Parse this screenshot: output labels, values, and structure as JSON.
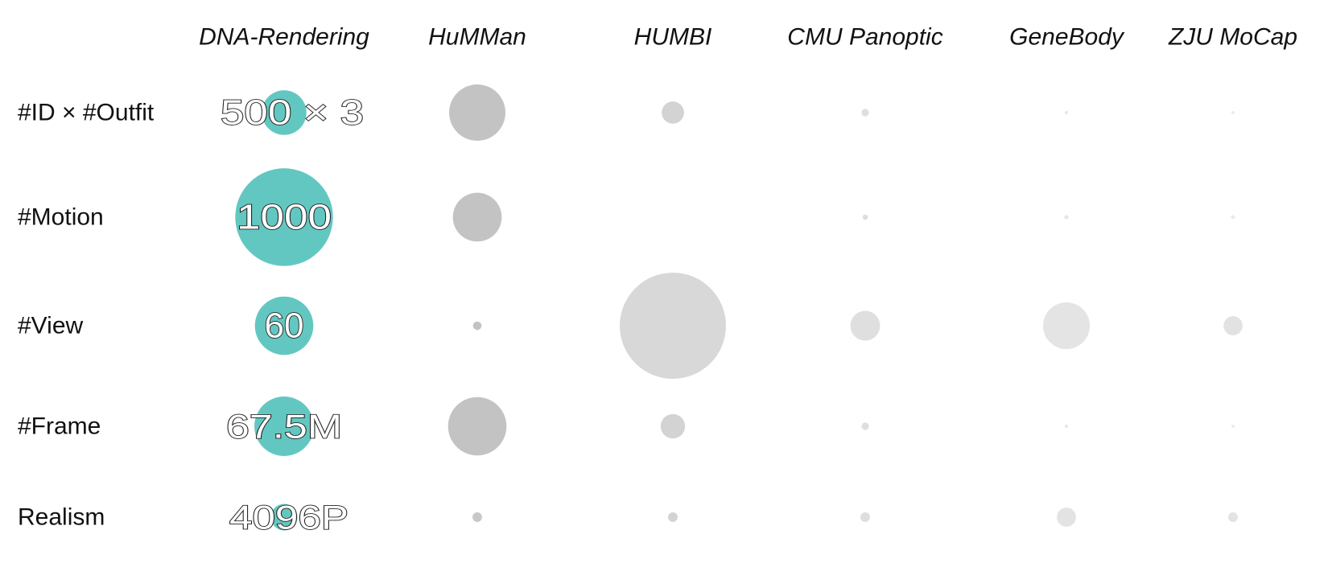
{
  "chart_data": {
    "type": "bubble-matrix",
    "columns": [
      "DNA-Rendering",
      "HuMMan",
      "HUMBI",
      "CMU Panoptic",
      "GeneBody",
      "ZJU MoCap"
    ],
    "rows": [
      "#ID × #Outfit",
      "#Motion",
      "#View",
      "#Frame",
      "Realism"
    ],
    "highlight_labels": [
      "500 × 3",
      "1000",
      "60",
      "67.5M",
      "4096P"
    ],
    "relative_size": [
      [
        0.42,
        0.53,
        0.21,
        0.07,
        0.03,
        0.03
      ],
      [
        0.92,
        0.46,
        0.0,
        0.05,
        0.04,
        0.04
      ],
      [
        0.55,
        0.08,
        1.0,
        0.28,
        0.44,
        0.18
      ],
      [
        0.56,
        0.55,
        0.23,
        0.07,
        0.03,
        0.02
      ],
      [
        0.25,
        0.09,
        0.09,
        0.09,
        0.18,
        0.09
      ]
    ],
    "shade": [
      [
        "#63c7c1",
        "#c3c3c3",
        "#d3d3d3",
        "#dedede",
        "#e6e6e6",
        "#ececec"
      ],
      [
        "#63c7c1",
        "#c3c3c3",
        "#ffffff",
        "#dedede",
        "#e6e6e6",
        "#ececec"
      ],
      [
        "#63c7c1",
        "#c3c3c3",
        "#d8d8d8",
        "#dfdfdf",
        "#e4e4e4",
        "#e2e2e2"
      ],
      [
        "#63c7c1",
        "#c3c3c3",
        "#d3d3d3",
        "#dedede",
        "#e6e6e6",
        "#ececec"
      ],
      [
        "#63c7c1",
        "#c8c8c8",
        "#d3d3d3",
        "#dedede",
        "#e3e3e3",
        "#e3e3e3"
      ]
    ]
  },
  "colors": {
    "highlight": "#63c7c1",
    "label_text": "#111111",
    "bubble_label_fill": "#ffffff",
    "bubble_label_outline": "#222222"
  }
}
